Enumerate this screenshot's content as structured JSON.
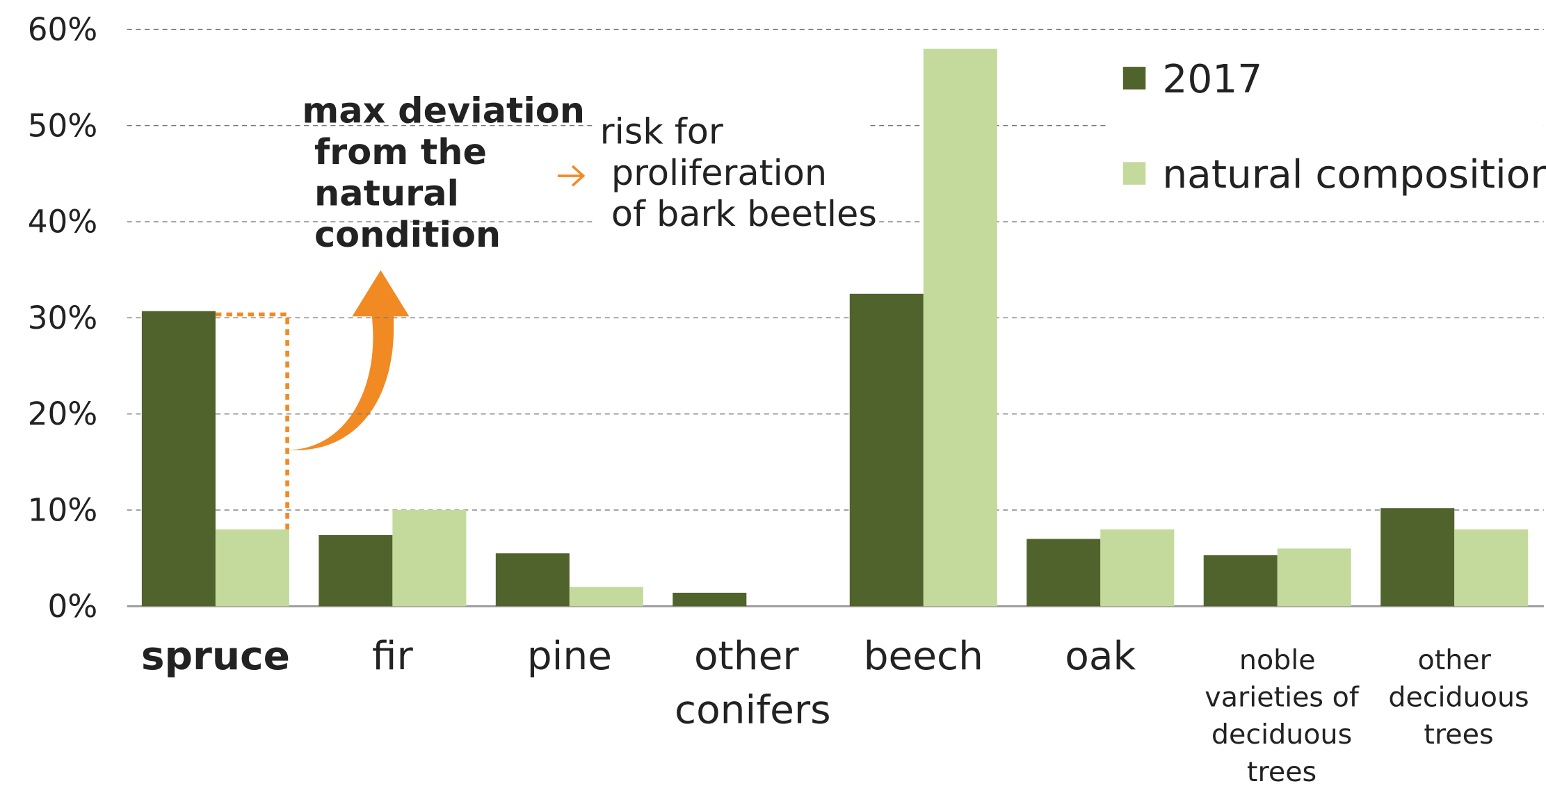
{
  "chart_data": {
    "type": "bar",
    "categories": [
      "spruce",
      "fir",
      "pine",
      "other conifers",
      "beech",
      "oak",
      "noble varieties of deciduous trees",
      "other deciduous trees"
    ],
    "series": [
      {
        "name": "2017",
        "color": "#50632c",
        "values": [
          30.7,
          7.4,
          5.5,
          1.4,
          32.5,
          7.0,
          5.3,
          10.2
        ]
      },
      {
        "name": "natural composition",
        "color": "#c3da9c",
        "values": [
          8.0,
          10.0,
          2.0,
          0,
          58.0,
          8.0,
          6.0,
          8.0
        ]
      }
    ],
    "ylim": [
      0,
      60
    ],
    "yticks": [
      {
        "value": 0,
        "label": "0%"
      },
      {
        "value": 10,
        "label": "10%"
      },
      {
        "value": 20,
        "label": "20%"
      },
      {
        "value": 30,
        "label": "30%"
      },
      {
        "value": 40,
        "label": "40%"
      },
      {
        "value": 50,
        "label": "50%"
      },
      {
        "value": 60,
        "label": "60%"
      }
    ],
    "grid": true,
    "legend": "upper right",
    "highlight_index": 0,
    "highlight_color": "#f28a24",
    "annotations": [
      "max deviation from the natural condition",
      "risk for proliferation of bark beetles"
    ]
  }
}
